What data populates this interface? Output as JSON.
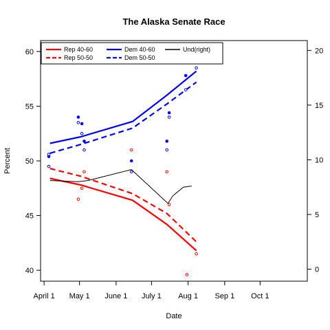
{
  "chart_data": {
    "type": "line",
    "title": "The Alaska Senate Race",
    "xlabel": "Date",
    "ylabel": "Percent",
    "x_ticks": [
      "April 1",
      "May 1",
      "June 1",
      "July 1",
      "Aug 1",
      "Sep 1",
      "Oct 1"
    ],
    "xlim": [
      "2008-03-29",
      "2008-11-10"
    ],
    "ylim": [
      39,
      61
    ],
    "y_ticks": [
      40,
      45,
      50,
      55,
      60
    ],
    "y2lim": [
      -1.1,
      20.9
    ],
    "y2_ticks": [
      0,
      5,
      10,
      15,
      20
    ],
    "grid": false,
    "legend_position": "top-left",
    "series": [
      {
        "name": "Rep 40-60",
        "color": "#ff0000",
        "dash": "solid",
        "axis": "left",
        "x": [
          "2008-04-06",
          "2008-05-02",
          "2008-06-15",
          "2008-07-14",
          "2008-08-08"
        ],
        "values": [
          48.4,
          47.8,
          46.4,
          44.2,
          41.8
        ]
      },
      {
        "name": "Rep 50-50",
        "color": "#ff0000",
        "dash": "dashed",
        "axis": "left",
        "x": [
          "2008-04-06",
          "2008-05-02",
          "2008-06-15",
          "2008-07-14",
          "2008-08-08"
        ],
        "values": [
          49.3,
          48.6,
          47.0,
          45.2,
          42.6
        ]
      },
      {
        "name": "Dem 40-60",
        "color": "#0000ff",
        "dash": "solid",
        "axis": "left",
        "x": [
          "2008-04-06",
          "2008-05-02",
          "2008-06-15",
          "2008-07-14",
          "2008-08-08"
        ],
        "values": [
          51.6,
          52.2,
          53.6,
          56.0,
          58.2
        ]
      },
      {
        "name": "Dem 50-50",
        "color": "#0000ff",
        "dash": "dashed",
        "axis": "left",
        "x": [
          "2008-04-06",
          "2008-05-02",
          "2008-06-15",
          "2008-07-14",
          "2008-08-08"
        ],
        "values": [
          50.7,
          51.5,
          53.0,
          55.2,
          57.2
        ]
      },
      {
        "name": "Und(right)",
        "color": "#000000",
        "dash": "solid",
        "axis": "right",
        "x": [
          "2008-04-06",
          "2008-04-30",
          "2008-05-08",
          "2008-06-14",
          "2008-07-15",
          "2008-07-19",
          "2008-07-28",
          "2008-08-04"
        ],
        "values": [
          8.1,
          8.0,
          8.1,
          9.1,
          6.0,
          6.7,
          7.5,
          7.6
        ]
      }
    ],
    "points": [
      {
        "x": "2008-04-05",
        "y": 50.4,
        "color": "#0000ff",
        "filled": true
      },
      {
        "x": "2008-04-05",
        "y": 50.6,
        "color": "#0000ff",
        "filled": false
      },
      {
        "x": "2008-04-05",
        "y": 49.5,
        "color": "#0000ff",
        "filled": false
      },
      {
        "x": "2008-04-30",
        "y": 54.0,
        "color": "#0000ff",
        "filled": true
      },
      {
        "x": "2008-04-30",
        "y": 53.5,
        "color": "#0000ff",
        "filled": false
      },
      {
        "x": "2008-05-03",
        "y": 53.4,
        "color": "#0000ff",
        "filled": true
      },
      {
        "x": "2008-05-03",
        "y": 52.5,
        "color": "#0000ff",
        "filled": false
      },
      {
        "x": "2008-05-05",
        "y": 51.8,
        "color": "#0000ff",
        "filled": true
      },
      {
        "x": "2008-05-05",
        "y": 51.0,
        "color": "#0000ff",
        "filled": false
      },
      {
        "x": "2008-06-14",
        "y": 50.0,
        "color": "#0000ff",
        "filled": true
      },
      {
        "x": "2008-06-14",
        "y": 49.0,
        "color": "#0000ff",
        "filled": false
      },
      {
        "x": "2008-07-14",
        "y": 51.8,
        "color": "#0000ff",
        "filled": true
      },
      {
        "x": "2008-07-14",
        "y": 51.0,
        "color": "#0000ff",
        "filled": false
      },
      {
        "x": "2008-07-16",
        "y": 54.4,
        "color": "#0000ff",
        "filled": true
      },
      {
        "x": "2008-07-16",
        "y": 54.0,
        "color": "#0000ff",
        "filled": false
      },
      {
        "x": "2008-07-30",
        "y": 57.8,
        "color": "#0000ff",
        "filled": true
      },
      {
        "x": "2008-07-30",
        "y": 56.5,
        "color": "#0000ff",
        "filled": false
      },
      {
        "x": "2008-08-08",
        "y": 58.5,
        "color": "#0000ff",
        "filled": false
      },
      {
        "x": "2008-04-30",
        "y": 46.5,
        "color": "#ff0000",
        "filled": false
      },
      {
        "x": "2008-05-03",
        "y": 47.5,
        "color": "#ff0000",
        "filled": false
      },
      {
        "x": "2008-05-05",
        "y": 49.0,
        "color": "#ff0000",
        "filled": false
      },
      {
        "x": "2008-06-14",
        "y": 51.0,
        "color": "#ff0000",
        "filled": false
      },
      {
        "x": "2008-07-14",
        "y": 49.0,
        "color": "#ff0000",
        "filled": false
      },
      {
        "x": "2008-07-16",
        "y": 46.0,
        "color": "#ff0000",
        "filled": false
      },
      {
        "x": "2008-07-31",
        "y": 39.6,
        "color": "#ff0000",
        "filled": false
      },
      {
        "x": "2008-08-08",
        "y": 41.5,
        "color": "#ff0000",
        "filled": false
      }
    ]
  }
}
